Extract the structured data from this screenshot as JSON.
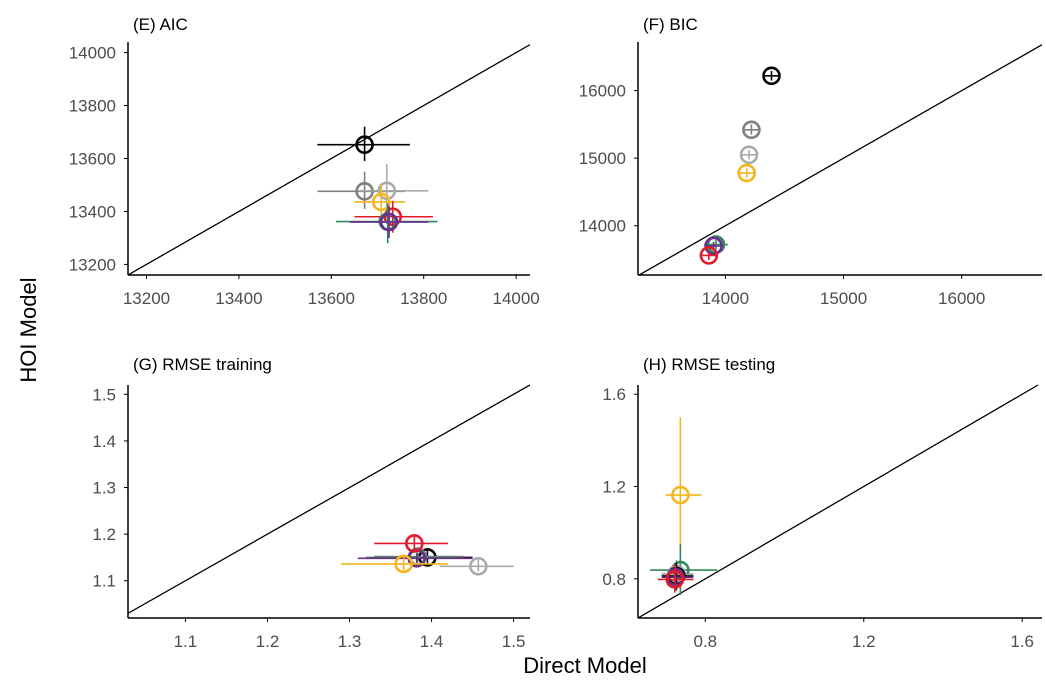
{
  "labels": {
    "xlabel": "Direct Model",
    "ylabel": "HOI Model"
  },
  "chart_data": [
    {
      "type": "scatter",
      "title": "(E) AIC",
      "xlim": [
        13160,
        14030
      ],
      "ylim": [
        13160,
        14040
      ],
      "xticks": [
        13200,
        13400,
        13600,
        13800,
        14000
      ],
      "yticks": [
        13200,
        13400,
        13600,
        13800,
        14000
      ],
      "grid": false,
      "identity_line": true,
      "points": [
        {
          "color": "#000000",
          "x": 13672,
          "y": 13652,
          "xerr": [
            13570,
            13770
          ],
          "yerr": [
            13590,
            13720
          ]
        },
        {
          "color": "#808080",
          "x": 13672,
          "y": 13476,
          "xerr": [
            13570,
            13760
          ],
          "yerr": [
            13410,
            13550
          ]
        },
        {
          "color": "#aaaaaa",
          "x": 13720,
          "y": 13478,
          "xerr": [
            13660,
            13810
          ],
          "yerr": [
            13400,
            13580
          ]
        },
        {
          "color": "#f5b51c",
          "x": 13708,
          "y": 13436,
          "xerr": [
            13650,
            13760
          ],
          "yerr": [
            13370,
            13500
          ]
        },
        {
          "color": "#e31a2a",
          "x": 13733,
          "y": 13380,
          "xerr": [
            13650,
            13820
          ],
          "yerr": [
            13320,
            13440
          ]
        },
        {
          "color": "#2e8b57",
          "x": 13722,
          "y": 13362,
          "xerr": [
            13610,
            13830
          ],
          "yerr": [
            13280,
            13430
          ]
        },
        {
          "color": "#6a2c91",
          "x": 13725,
          "y": 13360,
          "xerr": [
            13640,
            13810
          ],
          "yerr": [
            13300,
            13420
          ]
        }
      ]
    },
    {
      "type": "scatter",
      "title": "(F) BIC",
      "xlim": [
        13260,
        16680
      ],
      "ylim": [
        13270,
        16720
      ],
      "xticks": [
        14000,
        15000,
        16000
      ],
      "yticks": [
        14000,
        15000,
        16000
      ],
      "grid": false,
      "identity_line": true,
      "points": [
        {
          "color": "#000000",
          "x": 14390,
          "y": 16220,
          "xerr": [
            14320,
            14460
          ],
          "yerr": [
            16150,
            16290
          ]
        },
        {
          "color": "#808080",
          "x": 14220,
          "y": 15420,
          "xerr": [
            14150,
            14290
          ],
          "yerr": [
            15350,
            15500
          ]
        },
        {
          "color": "#aaaaaa",
          "x": 14200,
          "y": 15050,
          "xerr": [
            14130,
            14270
          ],
          "yerr": [
            14980,
            15120
          ]
        },
        {
          "color": "#f5b51c",
          "x": 14180,
          "y": 14780,
          "xerr": [
            14110,
            14250
          ],
          "yerr": [
            14710,
            14850
          ]
        },
        {
          "color": "#2e8b57",
          "x": 13920,
          "y": 13720,
          "xerr": [
            13820,
            14020
          ],
          "yerr": [
            13650,
            13790
          ]
        },
        {
          "color": "#6a2c91",
          "x": 13900,
          "y": 13700,
          "xerr": [
            13830,
            13970
          ],
          "yerr": [
            13640,
            13760
          ]
        },
        {
          "color": "#e31a2a",
          "x": 13860,
          "y": 13560,
          "xerr": [
            13790,
            13930
          ],
          "yerr": [
            13490,
            13630
          ]
        }
      ]
    },
    {
      "type": "scatter",
      "title": "(G) RMSE training",
      "xlim": [
        1.03,
        1.52
      ],
      "ylim": [
        1.02,
        1.52
      ],
      "xticks": [
        1.1,
        1.2,
        1.3,
        1.4,
        1.5
      ],
      "yticks": [
        1.1,
        1.2,
        1.3,
        1.4,
        1.5
      ],
      "grid": false,
      "identity_line": true,
      "points": [
        {
          "color": "#aaaaaa",
          "x": 1.457,
          "y": 1.131,
          "xerr": [
            1.41,
            1.5
          ],
          "yerr": [
            1.12,
            1.145
          ]
        },
        {
          "color": "#000000",
          "x": 1.395,
          "y": 1.15,
          "xerr": [
            1.34,
            1.45
          ],
          "yerr": [
            1.135,
            1.165
          ]
        },
        {
          "color": "#808080",
          "x": 1.383,
          "y": 1.152,
          "xerr": [
            1.33,
            1.44
          ],
          "yerr": [
            1.14,
            1.165
          ]
        },
        {
          "color": "#2e8b57",
          "x": 1.382,
          "y": 1.15,
          "xerr": [
            1.32,
            1.43
          ],
          "yerr": [
            1.14,
            1.16
          ]
        },
        {
          "color": "#6a2c91",
          "x": 1.382,
          "y": 1.148,
          "xerr": [
            1.31,
            1.45
          ],
          "yerr": [
            1.138,
            1.158
          ]
        },
        {
          "color": "#e31a2a",
          "x": 1.379,
          "y": 1.18,
          "xerr": [
            1.33,
            1.42
          ],
          "yerr": [
            1.16,
            1.2
          ]
        },
        {
          "color": "#f5b51c",
          "x": 1.366,
          "y": 1.136,
          "xerr": [
            1.29,
            1.42
          ],
          "yerr": [
            1.12,
            1.15
          ]
        }
      ]
    },
    {
      "type": "scatter",
      "title": "(H) RMSE testing",
      "xlim": [
        0.63,
        1.65
      ],
      "ylim": [
        0.63,
        1.64
      ],
      "xticks": [
        0.8,
        1.2,
        1.6
      ],
      "yticks": [
        0.8,
        1.2,
        1.6
      ],
      "grid": false,
      "identity_line": true,
      "points": [
        {
          "color": "#f5b51c",
          "x": 0.737,
          "y": 1.163,
          "xerr": [
            0.7,
            0.79
          ],
          "yerr": [
            0.93,
            1.5
          ]
        },
        {
          "color": "#2e8b57",
          "x": 0.737,
          "y": 0.838,
          "xerr": [
            0.66,
            0.83
          ],
          "yerr": [
            0.73,
            0.95
          ]
        },
        {
          "color": "#808080",
          "x": 0.727,
          "y": 0.82,
          "xerr": [
            0.69,
            0.77
          ],
          "yerr": [
            0.76,
            0.88
          ]
        },
        {
          "color": "#aaaaaa",
          "x": 0.727,
          "y": 0.817,
          "xerr": [
            0.69,
            0.77
          ],
          "yerr": [
            0.76,
            0.87
          ]
        },
        {
          "color": "#000000",
          "x": 0.727,
          "y": 0.812,
          "xerr": [
            0.69,
            0.77
          ],
          "yerr": [
            0.75,
            0.87
          ]
        },
        {
          "color": "#6a2c91",
          "x": 0.725,
          "y": 0.807,
          "xerr": [
            0.69,
            0.77
          ],
          "yerr": [
            0.75,
            0.86
          ]
        },
        {
          "color": "#e31a2a",
          "x": 0.723,
          "y": 0.797,
          "xerr": [
            0.68,
            0.77
          ],
          "yerr": [
            0.74,
            0.86
          ]
        }
      ]
    }
  ]
}
